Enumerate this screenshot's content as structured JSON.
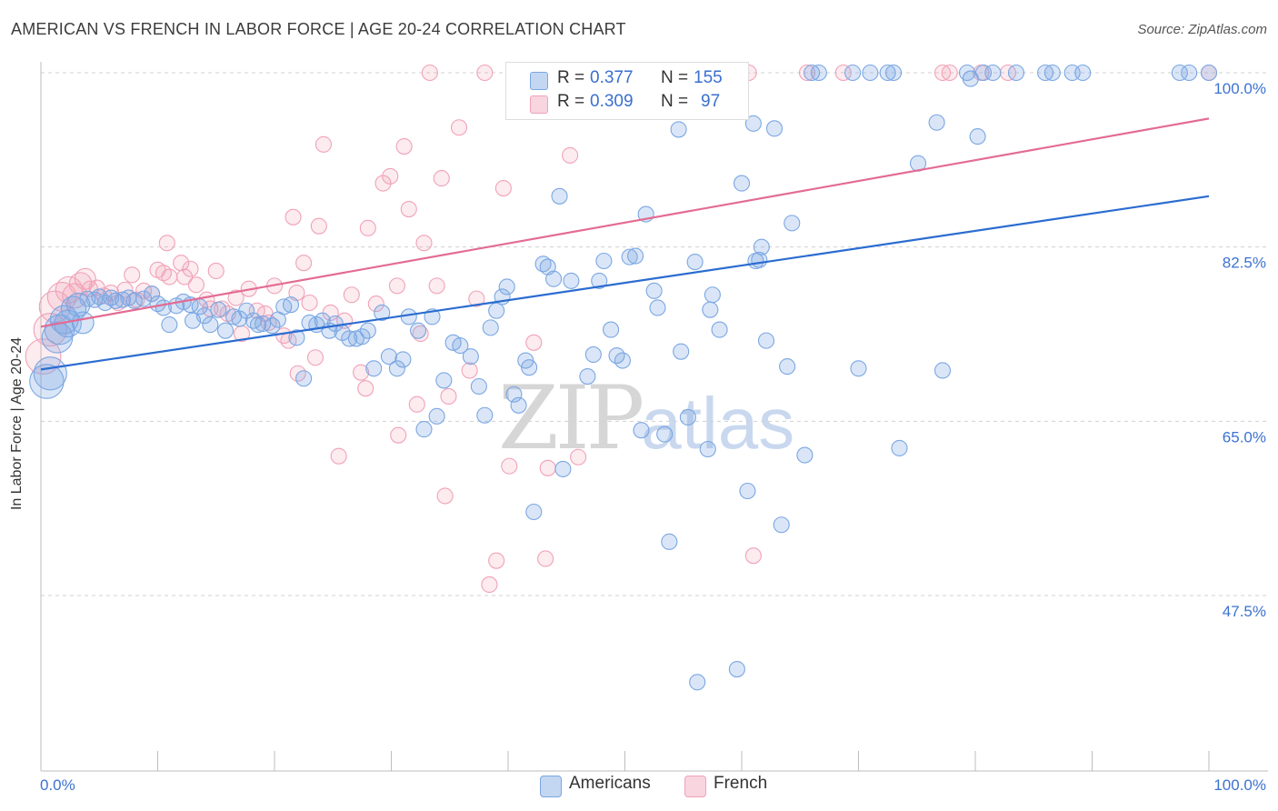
{
  "title": "AMERICAN VS FRENCH IN LABOR FORCE | AGE 20-24 CORRELATION CHART",
  "source": "Source: ZipAtlas.com",
  "watermark": {
    "zip": "ZIP",
    "atlas": "atlas"
  },
  "colors": {
    "americans": "#7ba7e2",
    "americans_fill": "rgba(123,167,226,0.28)",
    "americans_line": "#2b6cd0",
    "french": "#f0a2b8",
    "french_fill": "rgba(240,162,184,0.22)",
    "french_line": "#e36b93",
    "axis_text": "#3d72d1",
    "grid": "#d0d0d0"
  },
  "stats": {
    "americans": {
      "r_label": "R =",
      "r": "0.377",
      "n_label": "N =",
      "n": "155"
    },
    "french": {
      "r_label": "R =",
      "r": "0.309",
      "n_label": "N =",
      "n": "97"
    }
  },
  "legend": {
    "americans": "Americans",
    "french": "French"
  },
  "chart_data": {
    "type": "scatter",
    "title": "AMERICAN VS FRENCH IN LABOR FORCE | AGE 20-24 CORRELATION CHART",
    "xlabel": "",
    "ylabel": "In Labor Force | Age 20-24",
    "xlim": [
      0,
      100
    ],
    "ylim": [
      33,
      101
    ],
    "x_tick_labels": [
      "0.0%",
      "100.0%"
    ],
    "y_ticks": [
      47.5,
      65.0,
      82.5,
      100.0
    ],
    "y_tick_labels": [
      "47.5%",
      "65.0%",
      "82.5%",
      "100.0%"
    ],
    "grid": "horizontal dashed",
    "legend_position": "bottom-center",
    "series": [
      {
        "name": "Americans",
        "trend": {
          "x": [
            0,
            100
          ],
          "y": [
            70.2,
            87.6
          ]
        },
        "points": [
          [
            0.5,
            69
          ],
          [
            0.8,
            69.8
          ],
          [
            1.4,
            73.4
          ],
          [
            1.6,
            74.2
          ],
          [
            2.0,
            75.2
          ],
          [
            2.3,
            74.8
          ],
          [
            2.8,
            76.3
          ],
          [
            3.2,
            76.7
          ],
          [
            3.6,
            74.9
          ],
          [
            4.0,
            77.3
          ],
          [
            4.6,
            77.2
          ],
          [
            5.0,
            77.5
          ],
          [
            5.5,
            76.9
          ],
          [
            6.0,
            77.4
          ],
          [
            6.4,
            77.1
          ],
          [
            7.0,
            77.2
          ],
          [
            7.5,
            77.4
          ],
          [
            8.0,
            77.1
          ],
          [
            8.8,
            77.3
          ],
          [
            9.5,
            77.8
          ],
          [
            10.0,
            76.8
          ],
          [
            10.5,
            76.4
          ],
          [
            11.0,
            74.7
          ],
          [
            11.6,
            76.6
          ],
          [
            12.2,
            77.0
          ],
          [
            12.8,
            76.7
          ],
          [
            13.0,
            75.1
          ],
          [
            13.6,
            76.5
          ],
          [
            14.0,
            75.6
          ],
          [
            14.5,
            74.7
          ],
          [
            15.2,
            76.2
          ],
          [
            15.8,
            74.1
          ],
          [
            16.5,
            75.5
          ],
          [
            17.0,
            75.3
          ],
          [
            17.6,
            76.1
          ],
          [
            18.2,
            75.1
          ],
          [
            18.6,
            74.7
          ],
          [
            19.0,
            74.8
          ],
          [
            19.8,
            74.6
          ],
          [
            20.3,
            75.2
          ],
          [
            20.8,
            76.5
          ],
          [
            21.4,
            76.7
          ],
          [
            21.9,
            73.4
          ],
          [
            22.5,
            69.3
          ],
          [
            23.0,
            74.9
          ],
          [
            23.6,
            74.7
          ],
          [
            24.1,
            75.1
          ],
          [
            24.7,
            74.1
          ],
          [
            25.2,
            74.8
          ],
          [
            25.8,
            73.9
          ],
          [
            26.4,
            73.3
          ],
          [
            27.0,
            73.3
          ],
          [
            27.5,
            73.5
          ],
          [
            28.0,
            74.1
          ],
          [
            28.5,
            70.3
          ],
          [
            29.2,
            75.9
          ],
          [
            29.8,
            71.5
          ],
          [
            30.5,
            70.3
          ],
          [
            31.0,
            71.2
          ],
          [
            31.5,
            75.5
          ],
          [
            32.3,
            74.1
          ],
          [
            32.8,
            64.2
          ],
          [
            33.5,
            75.5
          ],
          [
            33.9,
            65.5
          ],
          [
            34.5,
            69.1
          ],
          [
            35.3,
            72.9
          ],
          [
            35.9,
            72.6
          ],
          [
            36.8,
            71.5
          ],
          [
            37.5,
            68.5
          ],
          [
            38.0,
            65.6
          ],
          [
            38.5,
            74.4
          ],
          [
            39.0,
            76.1
          ],
          [
            39.5,
            77.5
          ],
          [
            39.9,
            78.5
          ],
          [
            40.5,
            67.7
          ],
          [
            40.9,
            66.6
          ],
          [
            41.5,
            71.1
          ],
          [
            41.8,
            70.4
          ],
          [
            42.2,
            55.9
          ],
          [
            43.0,
            80.8
          ],
          [
            43.4,
            80.5
          ],
          [
            43.9,
            79.3
          ],
          [
            44.4,
            87.6
          ],
          [
            44.7,
            60.2
          ],
          [
            45.4,
            79.1
          ],
          [
            46.8,
            69.5
          ],
          [
            47.3,
            71.7
          ],
          [
            47.8,
            79.1
          ],
          [
            48.2,
            81.1
          ],
          [
            48.8,
            74.2
          ],
          [
            49.3,
            71.6
          ],
          [
            49.8,
            71.1
          ],
          [
            50.4,
            81.5
          ],
          [
            50.9,
            81.6
          ],
          [
            51.4,
            64.1
          ],
          [
            51.8,
            85.8
          ],
          [
            52.5,
            78.1
          ],
          [
            52.8,
            76.4
          ],
          [
            53.4,
            63.7
          ],
          [
            53.8,
            52.9
          ],
          [
            54.6,
            94.3
          ],
          [
            54.8,
            72
          ],
          [
            55.4,
            65.4
          ],
          [
            56.0,
            81
          ],
          [
            56.2,
            38.8
          ],
          [
            57.1,
            62.2
          ],
          [
            57.3,
            76.2
          ],
          [
            57.5,
            77.7
          ],
          [
            58.1,
            74.2
          ],
          [
            59.0,
            98.3
          ],
          [
            59.6,
            40.1
          ],
          [
            60.0,
            88.9
          ],
          [
            60.5,
            58.0
          ],
          [
            61.0,
            94.9
          ],
          [
            61.2,
            81.1
          ],
          [
            61.5,
            81.2
          ],
          [
            61.7,
            82.5
          ],
          [
            62.1,
            73.1
          ],
          [
            62.8,
            94.4
          ],
          [
            63.4,
            54.6
          ],
          [
            63.9,
            70.5
          ],
          [
            64.3,
            84.9
          ],
          [
            65.4,
            61.6
          ],
          [
            66.0,
            100
          ],
          [
            66.6,
            100
          ],
          [
            69.5,
            100
          ],
          [
            70.0,
            70.3
          ],
          [
            71.0,
            100
          ],
          [
            72.5,
            100
          ],
          [
            73.0,
            100
          ],
          [
            73.5,
            62.3
          ],
          [
            75.1,
            90.9
          ],
          [
            76.7,
            95.0
          ],
          [
            77.2,
            70.1
          ],
          [
            79.3,
            100
          ],
          [
            79.6,
            99.4
          ],
          [
            80.2,
            93.6
          ],
          [
            80.7,
            100
          ],
          [
            81.5,
            100
          ],
          [
            83.5,
            100
          ],
          [
            86.0,
            100
          ],
          [
            86.6,
            100
          ],
          [
            88.3,
            100
          ],
          [
            89.2,
            100
          ],
          [
            97.5,
            100
          ],
          [
            98.3,
            100
          ],
          [
            100,
            100
          ]
        ]
      },
      {
        "name": "French",
        "trend": {
          "x": [
            0,
            100
          ],
          "y": [
            74.5,
            95.4
          ]
        },
        "points": [
          [
            0.2,
            71.5
          ],
          [
            0.8,
            74.2
          ],
          [
            1.2,
            76.5
          ],
          [
            1.8,
            77.5
          ],
          [
            2.4,
            78.2
          ],
          [
            2.9,
            77.6
          ],
          [
            3.4,
            78.8
          ],
          [
            3.8,
            79.3
          ],
          [
            4.2,
            78.3
          ],
          [
            4.8,
            78.4
          ],
          [
            5.4,
            77.6
          ],
          [
            6.0,
            77.9
          ],
          [
            6.6,
            76.9
          ],
          [
            7.2,
            78.2
          ],
          [
            7.8,
            79.7
          ],
          [
            8.2,
            77.2
          ],
          [
            8.8,
            78.1
          ],
          [
            9.5,
            77.8
          ],
          [
            10.0,
            80.2
          ],
          [
            10.5,
            79.9
          ],
          [
            11.0,
            79.5
          ],
          [
            10.8,
            82.9
          ],
          [
            12.0,
            80.9
          ],
          [
            12.3,
            79.5
          ],
          [
            12.8,
            80.3
          ],
          [
            13.3,
            78.7
          ],
          [
            14.2,
            77.2
          ],
          [
            14.5,
            76.3
          ],
          [
            15.0,
            80.1
          ],
          [
            15.5,
            76.3
          ],
          [
            16.0,
            75.8
          ],
          [
            16.7,
            77.4
          ],
          [
            17.2,
            73.8
          ],
          [
            17.8,
            78.3
          ],
          [
            18.5,
            76.1
          ],
          [
            19.2,
            75.8
          ],
          [
            19.5,
            74.9
          ],
          [
            20.0,
            78.6
          ],
          [
            20.8,
            73.6
          ],
          [
            21.2,
            73.1
          ],
          [
            21.6,
            85.5
          ],
          [
            21.9,
            77.9
          ],
          [
            22.0,
            69.8
          ],
          [
            22.5,
            80.9
          ],
          [
            23.0,
            76.9
          ],
          [
            23.5,
            71.4
          ],
          [
            23.8,
            84.6
          ],
          [
            24.2,
            92.8
          ],
          [
            24.8,
            75.9
          ],
          [
            25.5,
            61.5
          ],
          [
            26.0,
            75.1
          ],
          [
            26.6,
            77.7
          ],
          [
            27.4,
            69.9
          ],
          [
            27.8,
            68.3
          ],
          [
            28.0,
            84.4
          ],
          [
            28.7,
            76.8
          ],
          [
            29.3,
            88.9
          ],
          [
            29.9,
            89.6
          ],
          [
            30.5,
            78.6
          ],
          [
            30.6,
            63.6
          ],
          [
            31.1,
            92.6
          ],
          [
            31.5,
            86.3
          ],
          [
            32.2,
            66.7
          ],
          [
            32.5,
            73.8
          ],
          [
            32.8,
            82.9
          ],
          [
            33.3,
            100
          ],
          [
            33.9,
            78.6
          ],
          [
            34.3,
            89.4
          ],
          [
            34.6,
            57.5
          ],
          [
            34.9,
            67.5
          ],
          [
            35.8,
            94.5
          ],
          [
            36.7,
            70.1
          ],
          [
            37.3,
            77.3
          ],
          [
            38.0,
            100
          ],
          [
            39.0,
            51
          ],
          [
            38.4,
            48.6
          ],
          [
            39.6,
            88.4
          ],
          [
            40.1,
            60.5
          ],
          [
            41.6,
            100
          ],
          [
            42.2,
            72.9
          ],
          [
            42.8,
            100
          ],
          [
            42.2,
            98.5
          ],
          [
            43.2,
            51.2
          ],
          [
            43.4,
            60.3
          ],
          [
            45.3,
            91.7
          ],
          [
            46.0,
            61.4
          ],
          [
            53.0,
            100
          ],
          [
            57.0,
            100
          ],
          [
            60.6,
            100
          ],
          [
            61.0,
            51.5
          ],
          [
            65.6,
            100
          ],
          [
            68.7,
            100
          ],
          [
            77.2,
            100
          ],
          [
            77.8,
            100
          ],
          [
            80.5,
            100
          ],
          [
            82.8,
            100
          ],
          [
            100,
            100
          ]
        ]
      }
    ]
  }
}
